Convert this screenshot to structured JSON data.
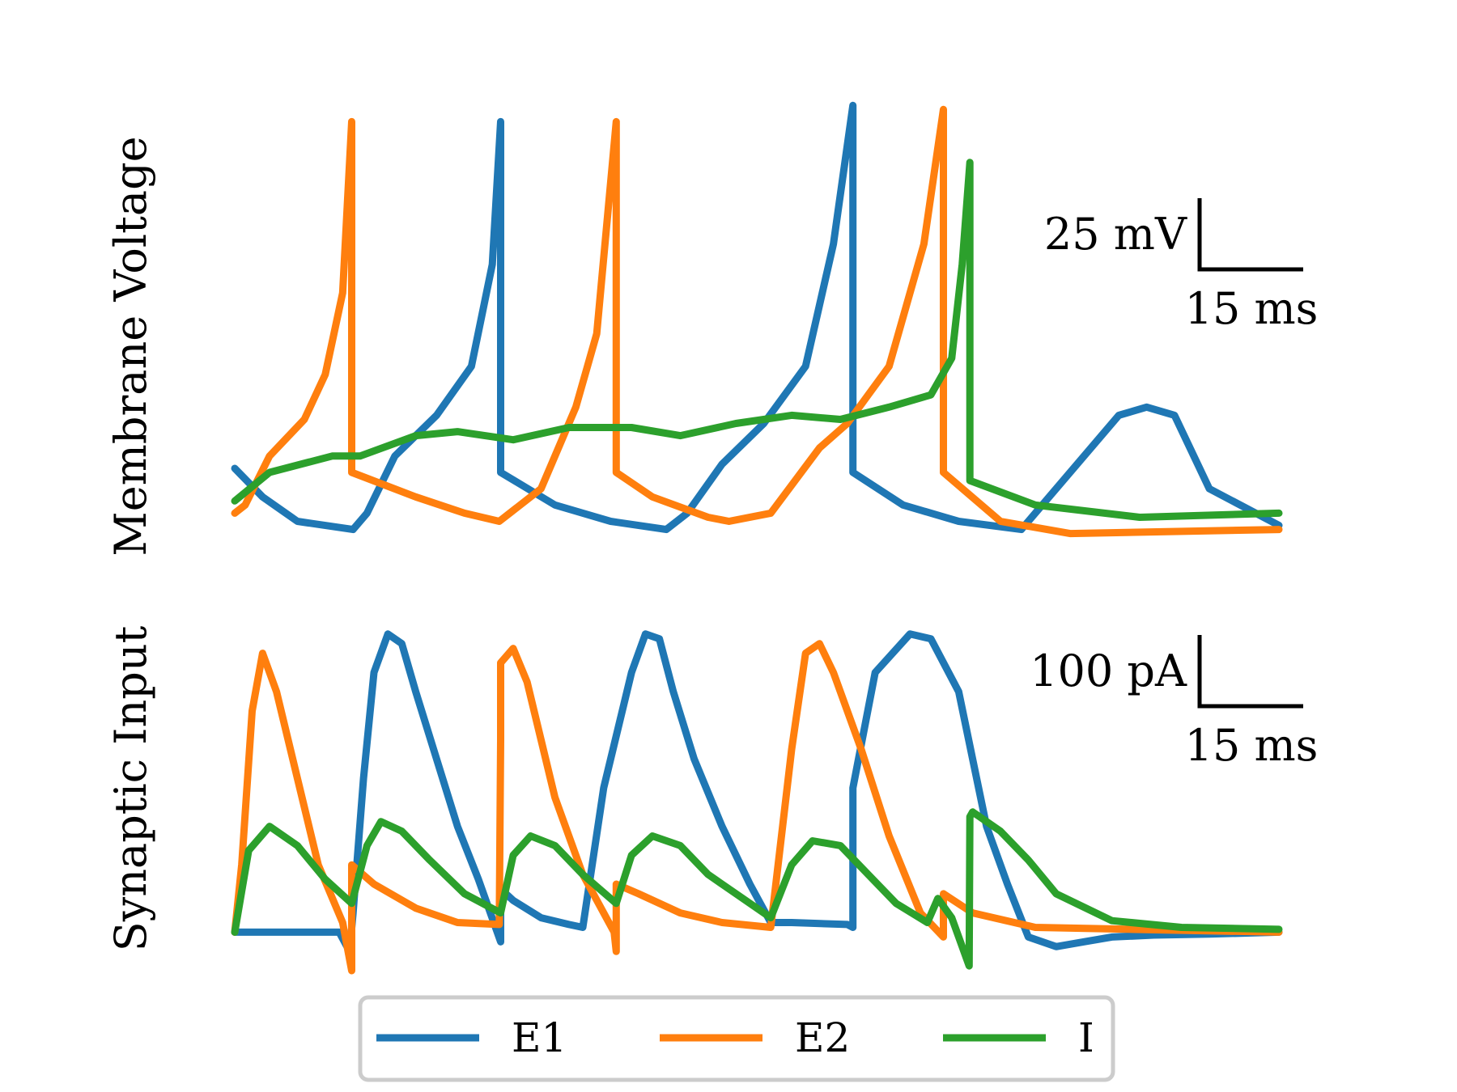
{
  "figure_colors": {
    "E1": "#1f77b4",
    "E2": "#ff7f0e",
    "I": "#2ca02c",
    "legend_frame": "#cccccc"
  },
  "chart_data": [
    {
      "type": "line",
      "panel": "top",
      "ylabel": "Membrane Voltage",
      "units": {
        "x": "ms",
        "y": "mV"
      },
      "xlim": [
        0,
        150
      ],
      "ylim": [
        -80,
        40
      ],
      "scale_bar": {
        "y_label": "25 mV",
        "x_label": "15 ms",
        "y_value": 25,
        "x_value": 15
      },
      "series": [
        {
          "name": "E1",
          "color": "#1f77b4",
          "x": [
            0,
            4,
            9,
            17,
            19,
            23,
            29,
            34,
            37,
            38.2,
            38.2,
            46,
            54,
            62,
            65,
            70,
            76,
            82,
            86,
            88.8,
            88.8,
            96,
            104,
            113,
            116,
            127,
            131,
            135,
            140,
            150
          ],
          "y": [
            -55,
            -62,
            -68,
            -70,
            -66,
            -52,
            -42,
            -30,
            -5,
            30,
            -56,
            -64,
            -68,
            -70,
            -66,
            -54,
            -44,
            -30,
            0,
            34,
            -56,
            -64,
            -68,
            -70,
            -64,
            -42,
            -40,
            -42,
            -60,
            -69
          ]
        },
        {
          "name": "E2",
          "color": "#ff7f0e",
          "x": [
            0,
            1.5,
            5,
            10,
            13,
            15.5,
            16.8,
            16.8,
            26,
            33,
            38,
            44,
            49,
            52,
            54.8,
            54.8,
            60,
            68,
            71,
            77,
            84,
            88,
            94,
            99,
            101.8,
            101.8,
            110,
            120,
            150
          ],
          "y": [
            -66,
            -64,
            -52,
            -43,
            -32,
            -12,
            30,
            -56,
            -62,
            -66,
            -68,
            -60,
            -40,
            -22,
            30,
            -56,
            -62,
            -67,
            -68,
            -66,
            -50,
            -44,
            -30,
            0,
            33,
            -56,
            -68,
            -71,
            -70
          ]
        },
        {
          "name": "I",
          "color": "#2ca02c",
          "x": [
            0,
            5,
            14,
            18,
            26,
            32,
            40,
            48,
            57,
            64,
            72,
            80,
            87,
            94,
            100,
            103,
            104.5,
            105.6,
            105.6,
            115,
            130,
            150
          ],
          "y": [
            -63,
            -56,
            -52,
            -52,
            -47,
            -46,
            -48,
            -45,
            -45,
            -47,
            -44,
            -42,
            -43,
            -40,
            -37,
            -28,
            -5,
            20,
            -58,
            -64,
            -67,
            -66
          ]
        }
      ]
    },
    {
      "type": "line",
      "panel": "bottom",
      "ylabel": "Synaptic Input",
      "units": {
        "x": "ms",
        "y": "pA"
      },
      "xlim": [
        0,
        150
      ],
      "ylim": [
        -40,
        330
      ],
      "scale_bar": {
        "y_label": "100 pA",
        "x_label": "15 ms",
        "y_value": 100,
        "x_value": 15
      },
      "series": [
        {
          "name": "E1",
          "color": "#1f77b4",
          "x": [
            0,
            15,
            16.5,
            17,
            18.5,
            20,
            22,
            24,
            26,
            29,
            32,
            35,
            38.2,
            38.2,
            40,
            44,
            48,
            50,
            53,
            57,
            59,
            61,
            63,
            66,
            70,
            74,
            77,
            80,
            88,
            88.8,
            88.8,
            92,
            97,
            100,
            104,
            106,
            108,
            111,
            114,
            118,
            122,
            126,
            132,
            140,
            150
          ],
          "y": [
            0,
            0,
            -20,
            20,
            160,
            270,
            310,
            300,
            250,
            180,
            110,
            55,
            -10,
            45,
            33,
            15,
            8,
            5,
            150,
            270,
            310,
            305,
            250,
            180,
            110,
            50,
            10,
            10,
            8,
            5,
            150,
            270,
            310,
            305,
            250,
            180,
            110,
            50,
            -5,
            -15,
            -10,
            -5,
            -3,
            -2,
            0
          ]
        },
        {
          "name": "E2",
          "color": "#ff7f0e",
          "x": [
            0,
            1,
            2.5,
            4,
            6,
            9,
            12,
            15.5,
            16.8,
            16.8,
            20,
            26,
            32,
            38,
            38.2,
            38.2,
            40,
            42,
            44,
            46,
            50,
            54.5,
            54.8,
            54.8,
            58,
            64,
            70,
            77,
            80,
            82,
            84,
            86,
            90,
            94,
            98.5,
            101.8,
            101.8,
            106,
            115,
            150
          ],
          "y": [
            0,
            70,
            230,
            290,
            250,
            160,
            70,
            10,
            -40,
            70,
            50,
            25,
            10,
            8,
            200,
            280,
            295,
            260,
            200,
            140,
            60,
            0,
            -20,
            50,
            40,
            20,
            10,
            5,
            190,
            290,
            300,
            270,
            190,
            100,
            20,
            -5,
            40,
            20,
            5,
            0
          ]
        },
        {
          "name": "I",
          "color": "#2ca02c",
          "x": [
            0,
            2,
            5,
            9,
            13,
            16.8,
            19,
            21,
            24,
            28,
            33,
            38.2,
            40,
            42.5,
            46,
            50,
            54.8,
            57,
            60,
            64,
            68,
            73,
            77,
            80,
            83,
            87,
            91,
            95,
            99.5,
            101,
            103,
            105.5,
            105.6,
            106,
            107,
            110,
            114,
            118,
            126,
            136,
            150
          ],
          "y": [
            0,
            85,
            110,
            90,
            55,
            30,
            90,
            115,
            105,
            75,
            40,
            20,
            80,
            100,
            90,
            60,
            30,
            80,
            100,
            90,
            60,
            35,
            15,
            70,
            95,
            90,
            60,
            30,
            10,
            35,
            15,
            -35,
            120,
            125,
            120,
            105,
            75,
            40,
            12,
            5,
            3
          ]
        }
      ]
    }
  ],
  "legend": {
    "items": [
      {
        "label": "E1",
        "color": "#1f77b4"
      },
      {
        "label": "E2",
        "color": "#ff7f0e"
      },
      {
        "label": "I",
        "color": "#2ca02c"
      }
    ],
    "placement": "bottom-center"
  }
}
